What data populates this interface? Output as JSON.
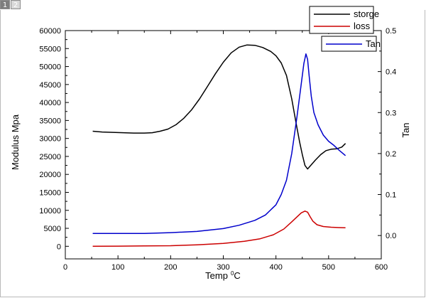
{
  "page_tabs": [
    {
      "label": "1",
      "active": true
    },
    {
      "label": "2",
      "active": false
    }
  ],
  "chart_data": {
    "type": "line",
    "title": "",
    "xlabel": "Temp",
    "xlabel_sup": "0",
    "xlabel_unit": "C",
    "ylabel_left": "Modulus Mpa",
    "ylabel_right": "Tan",
    "xlim": [
      0,
      600
    ],
    "ylim_left": [
      -3500,
      60000
    ],
    "ylim_right": [
      -0.057,
      0.5
    ],
    "x_ticks": [
      0,
      100,
      200,
      300,
      400,
      500,
      600
    ],
    "x_tick_labels": [
      "0",
      "100",
      "200",
      "300",
      "400",
      "500",
      "600"
    ],
    "y_left_ticks": [
      0,
      5000,
      10000,
      15000,
      20000,
      25000,
      30000,
      35000,
      40000,
      45000,
      50000,
      55000,
      60000
    ],
    "y_left_tick_labels": [
      "0",
      "5000",
      "10000",
      "15000",
      "20000",
      "25000",
      "30000",
      "35000",
      "40000",
      "45000",
      "50000",
      "55000",
      "60000"
    ],
    "y_right_ticks": [
      0.0,
      0.1,
      0.2,
      0.3,
      0.4,
      0.5
    ],
    "y_right_tick_labels": [
      "0.0",
      "0.1",
      "0.2",
      "0.3",
      "0.4",
      "0.5"
    ],
    "grid": false,
    "legend_position": "top-right",
    "series": [
      {
        "name": "storge",
        "axis": "left",
        "color": "#000000",
        "x": [
          52,
          70,
          90,
          110,
          130,
          150,
          165,
          180,
          195,
          210,
          225,
          240,
          255,
          270,
          285,
          300,
          315,
          330,
          345,
          360,
          375,
          390,
          400,
          410,
          420,
          430,
          438,
          445,
          450,
          455,
          460,
          466,
          475,
          485,
          495,
          505,
          515,
          525,
          532
        ],
        "y": [
          32000,
          31800,
          31700,
          31600,
          31500,
          31500,
          31600,
          32000,
          32600,
          33800,
          35600,
          38000,
          41000,
          44500,
          48000,
          51200,
          53800,
          55400,
          56000,
          55900,
          55300,
          54200,
          53000,
          51000,
          47500,
          41000,
          34500,
          29000,
          25500,
          22500,
          21500,
          22500,
          24000,
          25500,
          26600,
          27000,
          27100,
          27600,
          28600
        ]
      },
      {
        "name": "loss",
        "axis": "left",
        "color": "#cc0000",
        "x": [
          52,
          100,
          150,
          200,
          250,
          300,
          340,
          370,
          395,
          415,
          430,
          440,
          448,
          455,
          460,
          465,
          470,
          478,
          490,
          505,
          520,
          532
        ],
        "y": [
          0,
          50,
          100,
          150,
          400,
          800,
          1400,
          2100,
          3200,
          4800,
          6800,
          8200,
          9300,
          9800,
          9500,
          8200,
          7000,
          6000,
          5500,
          5300,
          5200,
          5150
        ]
      },
      {
        "name": "Tan",
        "axis": "right",
        "color": "#0000cc",
        "x": [
          52,
          100,
          150,
          200,
          250,
          300,
          330,
          360,
          380,
          400,
          410,
          420,
          430,
          440,
          448,
          453,
          457,
          460,
          463,
          467,
          472,
          480,
          490,
          500,
          510,
          520,
          532
        ],
        "y": [
          0.005,
          0.005,
          0.005,
          0.007,
          0.01,
          0.017,
          0.025,
          0.037,
          0.05,
          0.075,
          0.1,
          0.135,
          0.2,
          0.29,
          0.37,
          0.42,
          0.443,
          0.43,
          0.39,
          0.34,
          0.3,
          0.27,
          0.245,
          0.23,
          0.22,
          0.208,
          0.195
        ]
      }
    ]
  }
}
